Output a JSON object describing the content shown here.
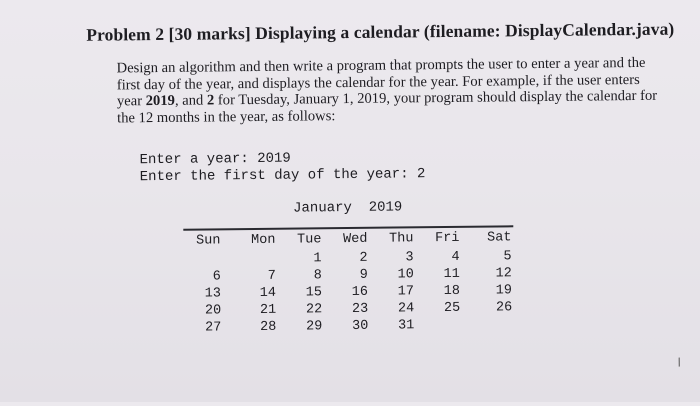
{
  "problem": {
    "title": "Problem 2 [30 marks] Displaying a calendar (filename: DisplayCalendar.java)",
    "lines": [
      {
        "parts": [
          {
            "t": "Design an algorithm and then write a program that prompts the user to enter a year and the",
            "b": false
          }
        ]
      },
      {
        "parts": [
          {
            "t": "first day of the year, and displays the calendar for the year. For example, if the user enters",
            "b": false
          }
        ]
      },
      {
        "parts": [
          {
            "t": "year ",
            "b": false
          },
          {
            "t": "2019",
            "b": true
          },
          {
            "t": ", and ",
            "b": false
          },
          {
            "t": "2",
            "b": true
          },
          {
            "t": " for Tuesday, January 1, 2019, your program should display the calendar for",
            "b": false
          }
        ]
      },
      {
        "parts": [
          {
            "t": "the 12 months in the year, as follows:",
            "b": false
          }
        ]
      }
    ]
  },
  "console": {
    "prompt_year": "Enter a year: 2019",
    "prompt_first_day": "Enter the first day of the year: 2"
  },
  "calendar": {
    "month_heading": "January  2019",
    "days": [
      "Sun",
      "Mon",
      "Tue",
      "Wed",
      "Thu",
      "Fri",
      "Sat"
    ],
    "weeks": [
      [
        "",
        "",
        "1",
        "2",
        "3",
        "4",
        "5"
      ],
      [
        "6",
        "7",
        "8",
        "9",
        "10",
        "11",
        "12"
      ],
      [
        "13",
        "14",
        "15",
        "16",
        "17",
        "18",
        "19"
      ],
      [
        "20",
        "21",
        "22",
        "23",
        "24",
        "25",
        "26"
      ],
      [
        "27",
        "28",
        "29",
        "30",
        "31",
        "",
        ""
      ]
    ]
  }
}
